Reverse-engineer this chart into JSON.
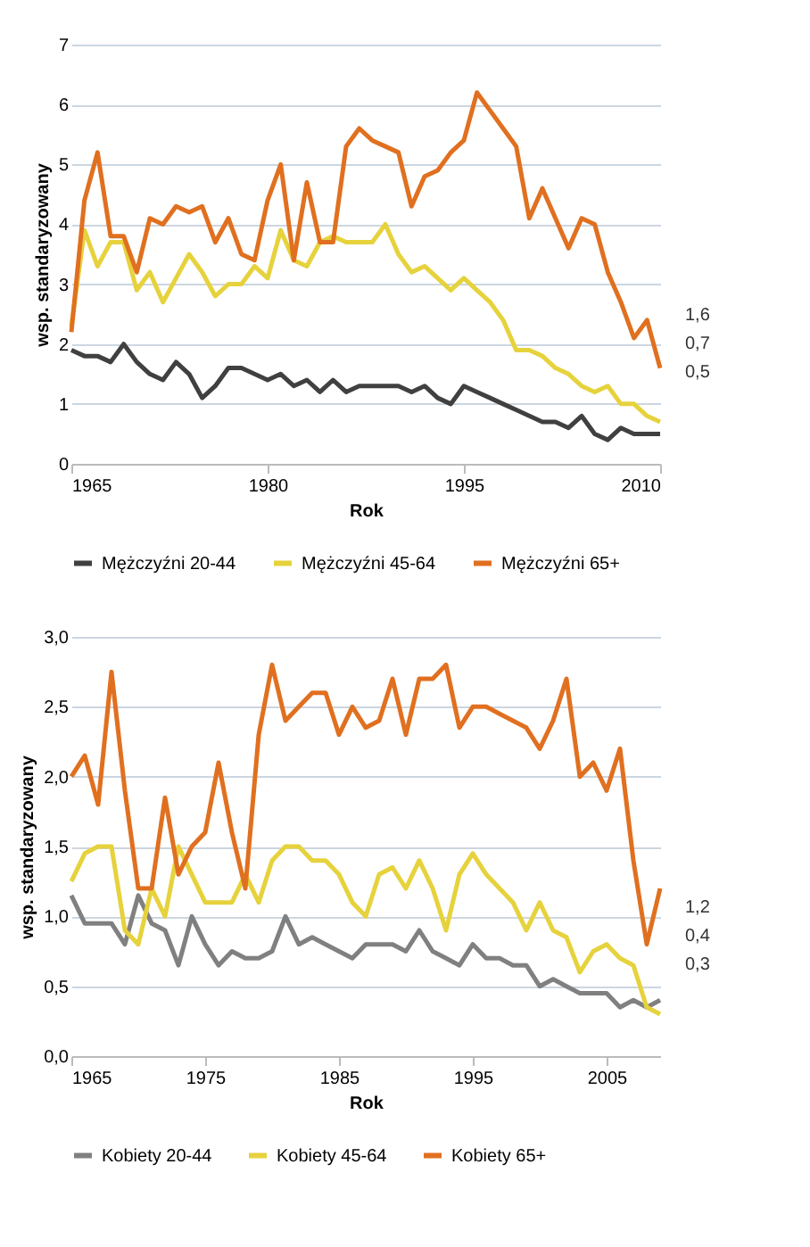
{
  "chart_data": [
    {
      "type": "line",
      "xlabel": "Rok",
      "ylabel": "wsp. standaryzowany",
      "x": [
        1965,
        1966,
        1967,
        1968,
        1969,
        1970,
        1971,
        1972,
        1973,
        1974,
        1975,
        1976,
        1977,
        1978,
        1979,
        1980,
        1981,
        1982,
        1983,
        1984,
        1985,
        1986,
        1987,
        1988,
        1989,
        1990,
        1991,
        1992,
        1993,
        1994,
        1995,
        1996,
        1997,
        1998,
        1999,
        2000,
        2001,
        2002,
        2003,
        2004,
        2005,
        2006,
        2007,
        2008,
        2009,
        2010
      ],
      "series": [
        {
          "name": "Mężczyźni 20-44",
          "color": "#404040",
          "values": [
            1.9,
            1.8,
            1.8,
            1.7,
            2.0,
            1.7,
            1.5,
            1.4,
            1.7,
            1.5,
            1.1,
            1.3,
            1.6,
            1.6,
            1.5,
            1.4,
            1.5,
            1.3,
            1.4,
            1.2,
            1.4,
            1.2,
            1.3,
            1.3,
            1.3,
            1.3,
            1.2,
            1.3,
            1.1,
            1.0,
            1.3,
            1.2,
            1.1,
            1.0,
            0.9,
            0.8,
            0.7,
            0.7,
            0.6,
            0.8,
            0.5,
            0.4,
            0.6,
            0.5,
            0.5,
            0.5
          ]
        },
        {
          "name": "Mężczyźni 45-64",
          "color": "#e6d23c",
          "values": [
            2.3,
            3.9,
            3.3,
            3.7,
            3.7,
            2.9,
            3.2,
            2.7,
            3.1,
            3.5,
            3.2,
            2.8,
            3.0,
            3.0,
            3.3,
            3.1,
            3.9,
            3.4,
            3.3,
            3.7,
            3.8,
            3.7,
            3.7,
            3.7,
            4.0,
            3.5,
            3.2,
            3.3,
            3.1,
            2.9,
            3.1,
            2.9,
            2.7,
            2.4,
            1.9,
            1.9,
            1.8,
            1.6,
            1.5,
            1.3,
            1.2,
            1.3,
            1.0,
            1.0,
            0.8,
            0.7
          ]
        },
        {
          "name": "Mężczyźni 65+",
          "color": "#e07020",
          "values": [
            2.2,
            4.4,
            5.2,
            3.8,
            3.8,
            3.2,
            4.1,
            4.0,
            4.3,
            4.2,
            4.3,
            3.7,
            4.1,
            3.5,
            3.4,
            4.4,
            5.0,
            3.4,
            4.7,
            3.7,
            3.7,
            5.3,
            5.6,
            5.4,
            5.3,
            5.2,
            4.3,
            4.8,
            4.9,
            5.2,
            5.4,
            6.2,
            5.9,
            5.6,
            5.3,
            4.1,
            4.6,
            4.1,
            3.6,
            4.1,
            4.0,
            3.2,
            2.7,
            2.1,
            2.4,
            1.6
          ]
        }
      ],
      "xlim": [
        1965,
        2010
      ],
      "xticks": [
        1965,
        1980,
        1995,
        2010
      ],
      "ylim": [
        0,
        7
      ],
      "yticks": [
        0,
        1,
        2,
        3,
        4,
        5,
        6,
        7
      ],
      "annotations": [
        "1,6",
        "0,7",
        "0,5"
      ],
      "grid": "y",
      "legend": "bottom",
      "line_style": "solid"
    },
    {
      "type": "line",
      "xlabel": "Rok",
      "ylabel": "wsp. standaryzowany",
      "x": [
        1965,
        1966,
        1967,
        1968,
        1969,
        1970,
        1971,
        1972,
        1973,
        1974,
        1975,
        1976,
        1977,
        1978,
        1979,
        1980,
        1981,
        1982,
        1983,
        1984,
        1985,
        1986,
        1987,
        1988,
        1989,
        1990,
        1991,
        1992,
        1993,
        1994,
        1995,
        1996,
        1997,
        1998,
        1999,
        2000,
        2001,
        2002,
        2003,
        2004,
        2005,
        2006,
        2007,
        2008,
        2009
      ],
      "series": [
        {
          "name": "Kobiety 20-44",
          "color": "#808080",
          "values": [
            1.15,
            0.95,
            0.95,
            0.95,
            0.8,
            1.15,
            0.95,
            0.9,
            0.65,
            1.0,
            0.8,
            0.65,
            0.75,
            0.7,
            0.7,
            0.75,
            1.0,
            0.8,
            0.85,
            0.8,
            0.75,
            0.7,
            0.8,
            0.8,
            0.8,
            0.75,
            0.9,
            0.75,
            0.7,
            0.65,
            0.8,
            0.7,
            0.7,
            0.65,
            0.65,
            0.5,
            0.55,
            0.5,
            0.45,
            0.45,
            0.45,
            0.35,
            0.4,
            0.35,
            0.4
          ]
        },
        {
          "name": "Kobiety 45-64",
          "color": "#e6d23c",
          "values": [
            1.25,
            1.45,
            1.5,
            1.5,
            0.9,
            0.8,
            1.2,
            1.0,
            1.5,
            1.3,
            1.1,
            1.1,
            1.1,
            1.3,
            1.1,
            1.4,
            1.5,
            1.5,
            1.4,
            1.4,
            1.3,
            1.1,
            1.0,
            1.3,
            1.35,
            1.2,
            1.4,
            1.2,
            0.9,
            1.3,
            1.45,
            1.3,
            1.2,
            1.1,
            0.9,
            1.1,
            0.9,
            0.85,
            0.6,
            0.75,
            0.8,
            0.7,
            0.65,
            0.35,
            0.3
          ]
        },
        {
          "name": "Kobiety 65+",
          "color": "#e07020",
          "values": [
            2.0,
            2.15,
            1.8,
            2.75,
            1.9,
            1.2,
            1.2,
            1.85,
            1.3,
            1.5,
            1.6,
            2.1,
            1.6,
            1.2,
            2.3,
            2.8,
            2.4,
            2.5,
            2.6,
            2.6,
            2.3,
            2.5,
            2.35,
            2.4,
            2.7,
            2.3,
            2.7,
            2.7,
            2.8,
            2.35,
            2.5,
            2.5,
            2.45,
            2.4,
            2.35,
            2.2,
            2.4,
            2.7,
            2.0,
            2.1,
            1.9,
            2.2,
            1.4,
            0.8,
            1.2
          ]
        }
      ],
      "xlim": [
        1965,
        2009
      ],
      "xticks": [
        1965,
        1975,
        1985,
        1995,
        2005
      ],
      "ylim": [
        0,
        3
      ],
      "yticks": [
        {
          "value": 0,
          "label": "0,0"
        },
        {
          "value": 0.5,
          "label": "0,5"
        },
        {
          "value": 1,
          "label": "1,0"
        },
        {
          "value": 1.5,
          "label": "1,5"
        },
        {
          "value": 2,
          "label": "2,0"
        },
        {
          "value": 2.5,
          "label": "2,5"
        },
        {
          "value": 3,
          "label": "3,0"
        }
      ],
      "annotations": [
        "1,2",
        "0,4",
        "0,3"
      ],
      "grid": "y",
      "legend": "bottom",
      "line_style": "solid"
    }
  ]
}
